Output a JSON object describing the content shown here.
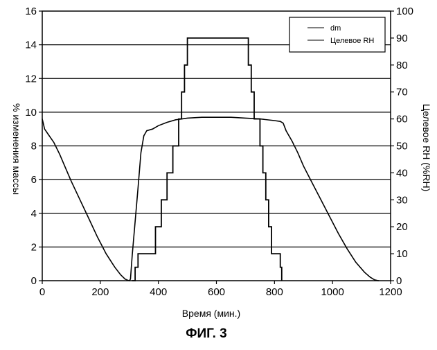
{
  "figure": {
    "caption": "ФИГ. 3"
  },
  "chart_data": {
    "type": "line",
    "xlabel": "Время (мин.)",
    "ylabel": "% изменения массы",
    "ylabel_right": "Целевое RH (%RH)",
    "xlim": [
      0,
      1200
    ],
    "ylim": [
      0,
      16
    ],
    "ylim_right": [
      0,
      100
    ],
    "x_ticks": [
      0,
      200,
      400,
      600,
      800,
      1000,
      1200
    ],
    "y_ticks": [
      0,
      2,
      4,
      6,
      8,
      10,
      12,
      14,
      16
    ],
    "y_ticks_right": [
      0,
      10,
      20,
      30,
      40,
      50,
      60,
      70,
      80,
      90,
      100
    ],
    "grid": "horizontal",
    "legend_position": "top-right",
    "series": [
      {
        "name": "dm",
        "axis": "left",
        "x": [
          0,
          8,
          20,
          40,
          60,
          80,
          100,
          130,
          160,
          190,
          220,
          250,
          270,
          285,
          295,
          300,
          304,
          310,
          320,
          330,
          340,
          350,
          360,
          380,
          400,
          430,
          460,
          500,
          550,
          600,
          650,
          700,
          750,
          800,
          820,
          830,
          840,
          860,
          880,
          900,
          930,
          960,
          990,
          1020,
          1050,
          1080,
          1110,
          1130,
          1145,
          1155,
          1160
        ],
        "values": [
          9.6,
          9.0,
          8.7,
          8.2,
          7.5,
          6.7,
          5.9,
          4.8,
          3.7,
          2.6,
          1.6,
          0.8,
          0.35,
          0.1,
          0.02,
          0,
          0.1,
          1.5,
          3.5,
          5.5,
          7.6,
          8.6,
          8.9,
          9.0,
          9.2,
          9.4,
          9.55,
          9.65,
          9.7,
          9.7,
          9.7,
          9.65,
          9.6,
          9.5,
          9.45,
          9.35,
          8.9,
          8.3,
          7.6,
          6.8,
          5.8,
          4.8,
          3.8,
          2.8,
          1.9,
          1.1,
          0.5,
          0.2,
          0.05,
          0.01,
          0
        ]
      },
      {
        "name": "Целевое RH",
        "axis": "right",
        "x": [
          310,
          320,
          330,
          340,
          350,
          360,
          370,
          380,
          390,
          400,
          410,
          420,
          430,
          440,
          450,
          460,
          470,
          480,
          490,
          500,
          510,
          520,
          530,
          540,
          550,
          560,
          570,
          580,
          590,
          600,
          610,
          620,
          630,
          640,
          650,
          660,
          670,
          680,
          690,
          700,
          710,
          720,
          730,
          740,
          750,
          760,
          770,
          780,
          790,
          800,
          810,
          820,
          825
        ],
        "values": [
          0,
          5,
          10,
          10,
          10,
          10,
          10,
          10,
          20,
          20,
          30,
          30,
          40,
          40,
          50,
          50,
          60,
          70,
          80,
          90,
          90,
          90,
          90,
          90,
          90,
          90,
          90,
          90,
          90,
          90,
          90,
          90,
          90,
          90,
          90,
          90,
          90,
          90,
          90,
          90,
          80,
          70,
          60,
          60,
          50,
          40,
          30,
          20,
          10,
          10,
          10,
          5,
          0
        ]
      }
    ]
  }
}
